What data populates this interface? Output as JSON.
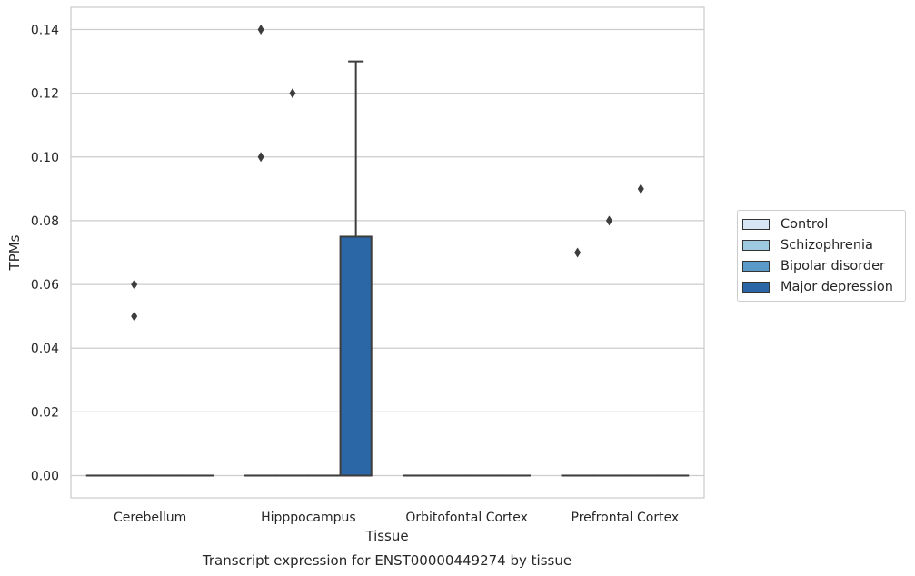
{
  "chart_data": {
    "type": "box",
    "title": "",
    "caption": "Transcript expression for ENST00000449274 by tissue",
    "xlabel": "Tissue",
    "ylabel": "TPMs",
    "ylim": [
      -0.007,
      0.147
    ],
    "yticks": [
      0.0,
      0.02,
      0.04,
      0.06,
      0.08,
      0.1,
      0.12,
      0.14
    ],
    "ytick_labels": [
      "0.00",
      "0.02",
      "0.04",
      "0.06",
      "0.08",
      "0.10",
      "0.12",
      "0.14"
    ],
    "grid": "horizontal",
    "legend_position": "right, outside",
    "categories": [
      "Cerebellum",
      "Hipppocampus",
      "Orbitofontal Cortex",
      "Prefrontal Cortex"
    ],
    "series": [
      {
        "name": "Control",
        "color": "#d6e6f4",
        "boxes": [
          {
            "q1": 0,
            "median": 0,
            "q3": 0,
            "whisker_low": 0,
            "whisker_high": 0,
            "outliers": []
          },
          {
            "q1": 0,
            "median": 0,
            "q3": 0,
            "whisker_low": 0,
            "whisker_high": 0,
            "outliers": [
              0.1,
              0.14
            ]
          },
          {
            "q1": 0,
            "median": 0,
            "q3": 0,
            "whisker_low": 0,
            "whisker_high": 0,
            "outliers": []
          },
          {
            "q1": 0,
            "median": 0,
            "q3": 0,
            "whisker_low": 0,
            "whisker_high": 0,
            "outliers": [
              0.07
            ]
          }
        ]
      },
      {
        "name": "Schizophrenia",
        "color": "#9ecae1",
        "boxes": [
          {
            "q1": 0,
            "median": 0,
            "q3": 0,
            "whisker_low": 0,
            "whisker_high": 0,
            "outliers": [
              0.05,
              0.06
            ]
          },
          {
            "q1": 0,
            "median": 0,
            "q3": 0,
            "whisker_low": 0,
            "whisker_high": 0,
            "outliers": [
              0.12
            ]
          },
          {
            "q1": 0,
            "median": 0,
            "q3": 0,
            "whisker_low": 0,
            "whisker_high": 0,
            "outliers": []
          },
          {
            "q1": 0,
            "median": 0,
            "q3": 0,
            "whisker_low": 0,
            "whisker_high": 0,
            "outliers": [
              0.08
            ]
          }
        ]
      },
      {
        "name": "Bipolar disorder",
        "color": "#5a9ac9",
        "boxes": [
          {
            "q1": 0,
            "median": 0,
            "q3": 0,
            "whisker_low": 0,
            "whisker_high": 0,
            "outliers": []
          },
          {
            "q1": 0,
            "median": 0,
            "q3": 0,
            "whisker_low": 0,
            "whisker_high": 0,
            "outliers": []
          },
          {
            "q1": 0,
            "median": 0,
            "q3": 0,
            "whisker_low": 0,
            "whisker_high": 0,
            "outliers": []
          },
          {
            "q1": 0,
            "median": 0,
            "q3": 0,
            "whisker_low": 0,
            "whisker_high": 0,
            "outliers": [
              0.09
            ]
          }
        ]
      },
      {
        "name": "Major depression",
        "color": "#2b66a6",
        "boxes": [
          {
            "q1": 0,
            "median": 0,
            "q3": 0,
            "whisker_low": 0,
            "whisker_high": 0,
            "outliers": []
          },
          {
            "q1": 0,
            "median": 0,
            "q3": 0.075,
            "whisker_low": 0,
            "whisker_high": 0.13,
            "outliers": []
          },
          {
            "q1": 0,
            "median": 0,
            "q3": 0,
            "whisker_low": 0,
            "whisker_high": 0,
            "outliers": []
          },
          {
            "q1": 0,
            "median": 0,
            "q3": 0,
            "whisker_low": 0,
            "whisker_high": 0,
            "outliers": []
          }
        ]
      }
    ]
  }
}
